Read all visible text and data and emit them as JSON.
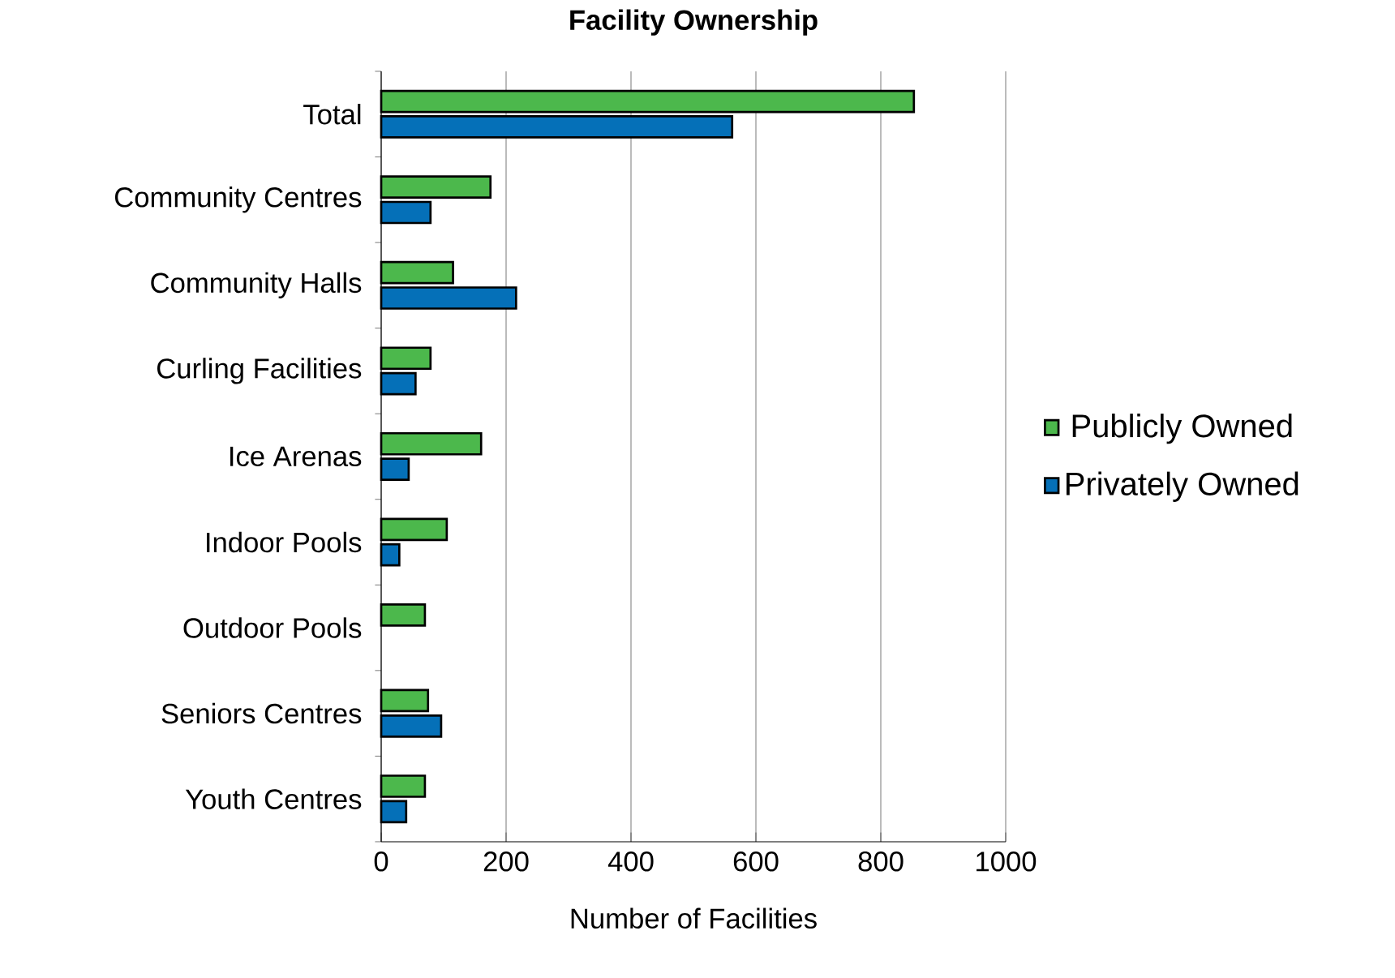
{
  "chart_data": {
    "type": "bar",
    "orientation": "horizontal",
    "title": "Facility Ownership",
    "xlabel": "Number of Facilities",
    "categories": [
      "Total",
      "Community Centres",
      "Community Halls",
      "Curling Facilities",
      "Ice Arenas",
      "Indoor Pools",
      "Outdoor Pools",
      "Seniors Centres",
      "Youth Centres"
    ],
    "series": [
      {
        "name": "Publicly Owned",
        "color": "#4cb84c",
        "values": [
          853,
          175,
          115,
          79,
          160,
          105,
          70,
          75,
          70
        ]
      },
      {
        "name": "Privately Owned",
        "color": "#0570b8",
        "values": [
          562,
          79,
          216,
          55,
          44,
          29,
          null,
          96,
          40
        ]
      }
    ],
    "xlim": [
      0,
      1000
    ],
    "xticks": [
      0,
      200,
      400,
      600,
      800,
      1000
    ],
    "grid": "x",
    "legend": "right"
  }
}
